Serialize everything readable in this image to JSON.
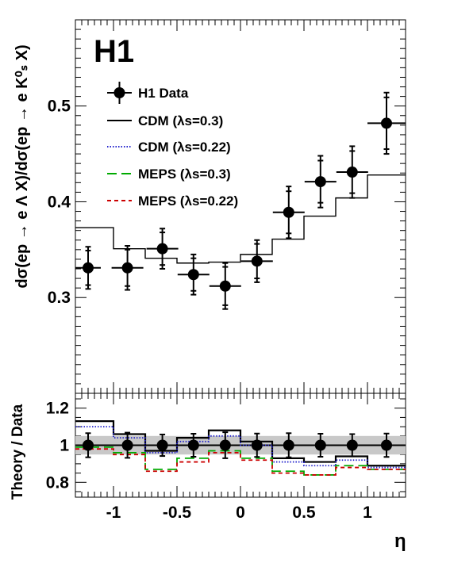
{
  "chart_data": [
    {
      "type": "scatter",
      "panel": "main",
      "title": "H1",
      "xlabel": "η",
      "ylabel": "dσ(ep → e Λ X)/dσ(ep → e K⁰ₛ X)",
      "xlim": [
        -1.3,
        1.3
      ],
      "ylim": [
        0.2,
        0.59
      ],
      "y_ticks": [
        "0.3",
        "0.4",
        "0.5"
      ],
      "legend": {
        "placement": "upper-left",
        "entries": [
          {
            "key": "data",
            "label": "H1 Data"
          },
          {
            "key": "cdm03",
            "label": "CDM (λs=0.3)"
          },
          {
            "key": "cdm022",
            "label": "CDM (λs=0.22)"
          },
          {
            "key": "meps03",
            "label": "MEPS (λs=0.3)"
          },
          {
            "key": "meps022",
            "label": "MEPS (λs=0.22)"
          }
        ]
      },
      "data": {
        "name": "H1 Data",
        "x": [
          -1.2,
          -0.89,
          -0.615,
          -0.37,
          -0.12,
          0.13,
          0.38,
          0.63,
          0.88,
          1.15
        ],
        "xerr": [
          0.1,
          0.125,
          0.125,
          0.125,
          0.125,
          0.125,
          0.125,
          0.125,
          0.125,
          0.15
        ],
        "y": [
          0.331,
          0.331,
          0.351,
          0.324,
          0.312,
          0.338,
          0.389,
          0.421,
          0.431,
          0.482
        ],
        "yerr_stat": [
          0.018,
          0.019,
          0.017,
          0.017,
          0.02,
          0.018,
          0.022,
          0.022,
          0.022,
          0.027
        ],
        "yerr_tot": [
          0.022,
          0.023,
          0.021,
          0.021,
          0.024,
          0.022,
          0.027,
          0.027,
          0.027,
          0.032
        ]
      },
      "model": {
        "name": "CDM (λs=0.3)",
        "bin_edges": [
          -1.3,
          -1.0,
          -0.75,
          -0.5,
          -0.25,
          0.0,
          0.25,
          0.5,
          0.75,
          1.0,
          1.3
        ],
        "values": [
          0.373,
          0.351,
          0.341,
          0.336,
          0.337,
          0.345,
          0.361,
          0.385,
          0.404,
          0.428
        ]
      }
    },
    {
      "type": "line",
      "panel": "ratio",
      "xlabel": "η",
      "ylabel": "Theory / Data",
      "xlim": [
        -1.3,
        1.3
      ],
      "ylim": [
        0.72,
        1.28
      ],
      "x_ticks": [
        "-1",
        "-0.5",
        "0",
        "0.5",
        "1"
      ],
      "y_ticks": [
        "0.8",
        "1",
        "1.2"
      ],
      "band": [
        0.95,
        1.05
      ],
      "bin_edges": [
        -1.3,
        -1.0,
        -0.75,
        -0.5,
        -0.25,
        0.0,
        0.25,
        0.5,
        0.75,
        1.0,
        1.3
      ],
      "data_ratio": {
        "x": [
          -1.2,
          -0.89,
          -0.615,
          -0.37,
          -0.12,
          0.13,
          0.38,
          0.63,
          0.88,
          1.15
        ],
        "y": [
          1,
          1,
          1,
          1,
          1,
          1,
          1,
          1,
          1,
          1
        ],
        "yerr": [
          0.065,
          0.068,
          0.058,
          0.062,
          0.07,
          0.063,
          0.065,
          0.062,
          0.06,
          0.063
        ]
      },
      "series": [
        {
          "name": "CDM (λs=0.3)",
          "key": "cdm03",
          "values": [
            1.13,
            1.06,
            0.97,
            1.04,
            1.08,
            1.02,
            0.93,
            0.91,
            0.94,
            0.89
          ]
        },
        {
          "name": "CDM (λs=0.22)",
          "key": "cdm022",
          "values": [
            1.1,
            1.04,
            0.96,
            1.02,
            1.05,
            1.0,
            0.91,
            0.89,
            0.92,
            0.88
          ]
        },
        {
          "name": "MEPS (λs=0.3)",
          "key": "meps03",
          "values": [
            0.99,
            0.96,
            0.87,
            0.93,
            0.97,
            0.93,
            0.86,
            0.84,
            0.89,
            0.87
          ]
        },
        {
          "name": "MEPS (λs=0.22)",
          "key": "meps022",
          "values": [
            0.98,
            0.95,
            0.86,
            0.91,
            0.96,
            0.92,
            0.85,
            0.84,
            0.88,
            0.87
          ]
        }
      ]
    }
  ],
  "styles": {
    "cdm03": {
      "color": "#000000",
      "dash": ""
    },
    "cdm022": {
      "color": "#2222cc",
      "dash": "1.5,2"
    },
    "meps03": {
      "color": "#00aa00",
      "dash": "12,6"
    },
    "meps022": {
      "color": "#cc0000",
      "dash": "5,4"
    },
    "band_color": "#c8c8c8"
  }
}
